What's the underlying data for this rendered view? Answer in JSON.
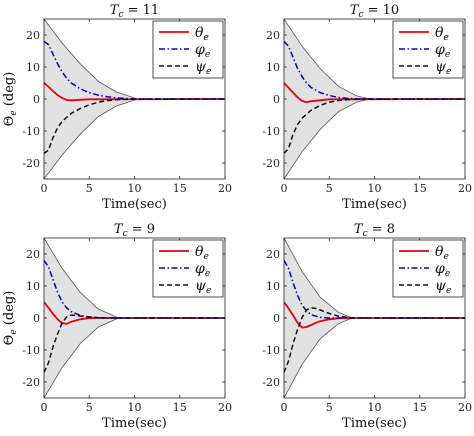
{
  "chart_data": [
    {
      "type": "line",
      "title": "T_c = 11",
      "title_main": "T",
      "title_sub": "c",
      "title_rest": " = 11",
      "xlabel": "Time(sec)",
      "ylabel": "Θ_e (deg)",
      "ylabel_main": "Θ",
      "ylabel_sub": "e",
      "ylabel_rest": " (deg)",
      "xlim": [
        0,
        20
      ],
      "ylim": [
        -25,
        25
      ],
      "xticks": [
        0,
        5,
        10,
        15,
        20
      ],
      "yticks": [
        -20,
        -10,
        0,
        10,
        20
      ],
      "grid": false,
      "legend_position": "top-right",
      "band": {
        "x": [
          0,
          2,
          4,
          6,
          8,
          10,
          10.5
        ],
        "upper": [
          25,
          17.5,
          11,
          5.5,
          2.2,
          0.3,
          0
        ]
      },
      "series": [
        {
          "name": "θ_e",
          "legend_main": "θ",
          "legend_sub": "e",
          "color": "#e8000b",
          "dash": "solid",
          "x": [
            0,
            0.5,
            1,
            1.5,
            2,
            2.5,
            3,
            5,
            20
          ],
          "y": [
            5,
            3.8,
            2.5,
            1.2,
            0.3,
            -0.3,
            -0.4,
            -0.1,
            0
          ]
        },
        {
          "name": "φ_e",
          "legend_main": "φ",
          "legend_sub": "e",
          "color": "#0000cc",
          "dash": "dashdot",
          "x": [
            0,
            0.5,
            1,
            1.5,
            2,
            2.5,
            3,
            4,
            5,
            6,
            7,
            8,
            9,
            10,
            20
          ],
          "y": [
            18,
            17,
            14,
            11,
            8.5,
            6.5,
            5,
            3.2,
            2,
            1.2,
            0.7,
            0.35,
            0.15,
            0,
            0
          ]
        },
        {
          "name": "ψ_e",
          "legend_main": "ψ",
          "legend_sub": "e",
          "color": "#111111",
          "dash": "dashed",
          "x": [
            0,
            0.5,
            1,
            1.5,
            2,
            3,
            4,
            5,
            6,
            7,
            8,
            10,
            20
          ],
          "y": [
            -17,
            -16,
            -12,
            -9,
            -7,
            -4.5,
            -3,
            -1.8,
            -1,
            -0.5,
            -0.2,
            0,
            0
          ]
        }
      ]
    },
    {
      "type": "line",
      "title": "T_c = 10",
      "title_main": "T",
      "title_sub": "c",
      "title_rest": " = 10",
      "xlabel": "Time(sec)",
      "ylabel": "",
      "ylabel_main": "",
      "ylabel_sub": "",
      "ylabel_rest": "",
      "xlim": [
        0,
        20
      ],
      "ylim": [
        -25,
        25
      ],
      "xticks": [
        0,
        5,
        10,
        15,
        20
      ],
      "yticks": [
        -20,
        -10,
        0,
        10,
        20
      ],
      "grid": false,
      "legend_position": "top-right",
      "band": {
        "x": [
          0,
          2,
          4,
          6,
          8,
          9.5
        ],
        "upper": [
          25,
          16.5,
          9.5,
          4,
          1,
          0
        ]
      },
      "series": [
        {
          "name": "θ_e",
          "legend_main": "θ",
          "legend_sub": "e",
          "color": "#e8000b",
          "dash": "solid",
          "x": [
            0,
            0.5,
            1,
            1.5,
            2,
            2.5,
            3,
            5,
            20
          ],
          "y": [
            5,
            3.5,
            2,
            0.5,
            -0.6,
            -1,
            -0.7,
            -0.1,
            0
          ]
        },
        {
          "name": "φ_e",
          "legend_main": "φ",
          "legend_sub": "e",
          "color": "#0000cc",
          "dash": "dashdot",
          "x": [
            0,
            0.5,
            1,
            1.5,
            2,
            2.5,
            3,
            4,
            5,
            6,
            7,
            8,
            9,
            20
          ],
          "y": [
            18,
            16.5,
            13,
            9.5,
            7,
            5,
            3.6,
            2,
            1.1,
            0.5,
            0.2,
            0.05,
            0,
            0
          ]
        },
        {
          "name": "ψ_e",
          "legend_main": "ψ",
          "legend_sub": "e",
          "color": "#111111",
          "dash": "dashed",
          "x": [
            0,
            0.5,
            1,
            1.5,
            2,
            3,
            4,
            5,
            6,
            7,
            9,
            20
          ],
          "y": [
            -17,
            -15.5,
            -11,
            -8,
            -6,
            -3.5,
            -2,
            -1,
            -0.5,
            -0.2,
            0,
            0
          ]
        }
      ]
    },
    {
      "type": "line",
      "title": "T_c = 9",
      "title_main": "T",
      "title_sub": "c",
      "title_rest": " = 9",
      "xlabel": "Time(sec)",
      "ylabel": "Θ_e (deg)",
      "ylabel_main": "Θ",
      "ylabel_sub": "e",
      "ylabel_rest": " (deg)",
      "xlim": [
        0,
        20
      ],
      "ylim": [
        -25,
        25
      ],
      "xticks": [
        0,
        5,
        10,
        15,
        20
      ],
      "yticks": [
        -20,
        -10,
        0,
        10,
        20
      ],
      "grid": false,
      "legend_position": "top-right",
      "band": {
        "x": [
          0,
          2,
          4,
          6,
          8,
          8.5
        ],
        "upper": [
          25,
          15.5,
          8,
          2.8,
          0.3,
          0
        ]
      },
      "series": [
        {
          "name": "θ_e",
          "legend_main": "θ",
          "legend_sub": "e",
          "color": "#e8000b",
          "dash": "solid",
          "x": [
            0,
            0.5,
            1,
            1.5,
            2,
            2.5,
            3,
            4,
            5,
            20
          ],
          "y": [
            5,
            3.2,
            1.3,
            -0.4,
            -1.6,
            -1.8,
            -1.2,
            -0.4,
            0,
            0
          ]
        },
        {
          "name": "φ_e",
          "legend_main": "φ",
          "legend_sub": "e",
          "color": "#0000cc",
          "dash": "dashdot",
          "x": [
            0,
            0.5,
            1,
            1.5,
            2,
            2.5,
            3,
            4,
            5,
            6,
            7,
            8,
            20
          ],
          "y": [
            18,
            16,
            12,
            8,
            5,
            3.2,
            2,
            0.8,
            0.3,
            0.1,
            0,
            0,
            0
          ]
        },
        {
          "name": "ψ_e",
          "legend_main": "ψ",
          "legend_sub": "e",
          "color": "#111111",
          "dash": "dashed",
          "x": [
            0,
            0.5,
            1,
            1.5,
            2,
            2.5,
            3,
            3.5,
            4,
            5,
            6,
            7,
            8,
            20
          ],
          "y": [
            -17,
            -14,
            -9,
            -5,
            -1.5,
            0.3,
            0.9,
            0.8,
            0.6,
            0.3,
            0.1,
            0,
            0,
            0
          ]
        }
      ]
    },
    {
      "type": "line",
      "title": "T_c = 8",
      "title_main": "T",
      "title_sub": "c",
      "title_rest": " = 8",
      "xlabel": "Time(sec)",
      "ylabel": "",
      "ylabel_main": "",
      "ylabel_sub": "",
      "ylabel_rest": "",
      "xlim": [
        0,
        20
      ],
      "ylim": [
        -25,
        25
      ],
      "xticks": [
        0,
        5,
        10,
        15,
        20
      ],
      "yticks": [
        -20,
        -10,
        0,
        10,
        20
      ],
      "grid": false,
      "legend_position": "top-right",
      "band": {
        "x": [
          0,
          2,
          4,
          6,
          7.5
        ],
        "upper": [
          25,
          14.5,
          6.5,
          1.8,
          0
        ]
      },
      "series": [
        {
          "name": "θ_e",
          "legend_main": "θ",
          "legend_sub": "e",
          "color": "#e8000b",
          "dash": "solid",
          "x": [
            0,
            0.5,
            1,
            1.5,
            2,
            2.5,
            3,
            3.5,
            4,
            5,
            6,
            7,
            20
          ],
          "y": [
            5,
            3,
            0.8,
            -1.5,
            -3,
            -2.8,
            -2.2,
            -1.5,
            -1,
            -0.4,
            -0.1,
            0,
            0
          ]
        },
        {
          "name": "φ_e",
          "legend_main": "φ",
          "legend_sub": "e",
          "color": "#0000cc",
          "dash": "dashdot",
          "x": [
            0,
            0.5,
            1,
            1.5,
            2,
            2.5,
            3,
            4,
            5,
            6,
            7,
            20
          ],
          "y": [
            18,
            15.5,
            11,
            7,
            4,
            2.2,
            1,
            0.2,
            0,
            0,
            0,
            0
          ]
        },
        {
          "name": "ψ_e",
          "legend_main": "ψ",
          "legend_sub": "e",
          "color": "#111111",
          "dash": "dashed",
          "x": [
            0,
            0.5,
            1,
            1.5,
            2,
            2.5,
            3,
            3.5,
            4,
            5,
            6,
            7,
            8,
            20
          ],
          "y": [
            -17,
            -13.5,
            -8,
            -3.5,
            0.2,
            2.5,
            3.2,
            3,
            2.5,
            1.4,
            0.6,
            0.2,
            0,
            0
          ]
        }
      ]
    }
  ]
}
